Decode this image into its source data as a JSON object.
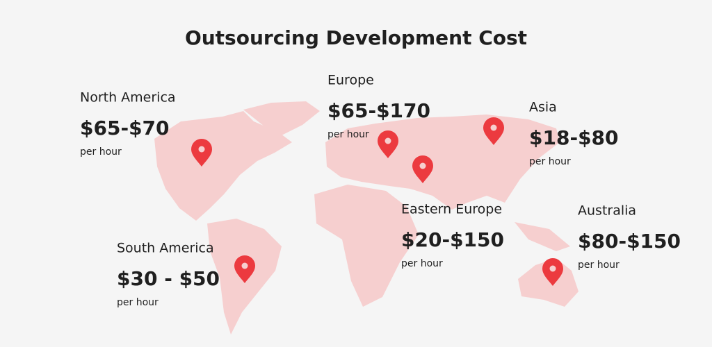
{
  "title": "Outsourcing Development Cost",
  "regions": [
    {
      "name": "North America",
      "price": "$65-$70",
      "unit": "per hour"
    },
    {
      "name": "Europe",
      "price": "$65-$170",
      "unit": "per hour"
    },
    {
      "name": "Asia",
      "price": "$18-$80",
      "unit": "per hour"
    },
    {
      "name": "South America",
      "price": "$30 - $50",
      "unit": "per hour"
    },
    {
      "name": "Eastern Europe",
      "price": "$20-$150",
      "unit": "per hour"
    },
    {
      "name": "Australia",
      "price": "$80-$150",
      "unit": "per hour"
    }
  ]
}
